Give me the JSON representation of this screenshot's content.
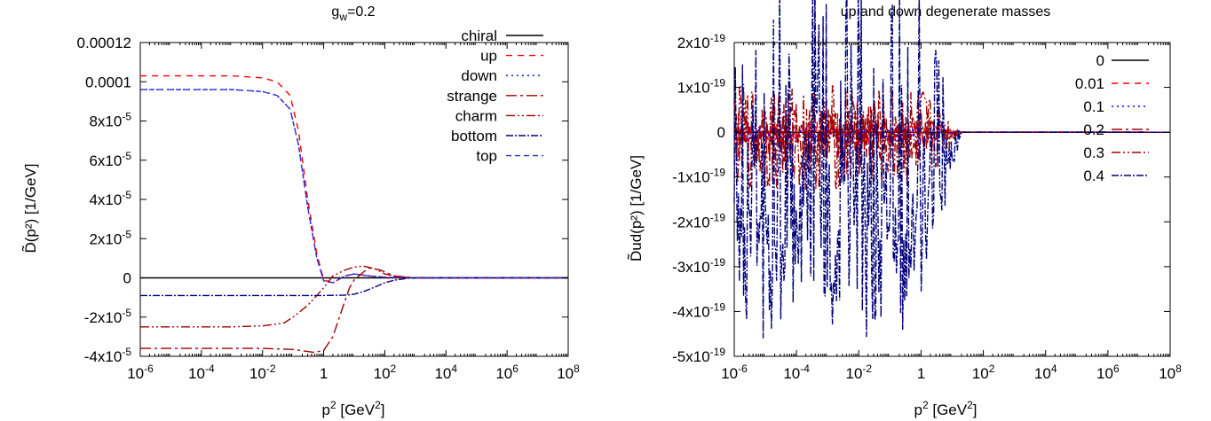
{
  "chart_data": [
    {
      "type": "line",
      "title": "g_w=0.2",
      "title_main": "g",
      "title_sub": "w",
      "title_rest": "=0.2",
      "xlabel_main": "p",
      "xlabel_sup": "2",
      "xlabel_rest": " [GeV",
      "xlabel_sup2": "2",
      "xlabel_end": "]",
      "ylabel": "D̃(p²) [1/GeV]",
      "x_scale": "log",
      "xlim": [
        1e-06,
        100000000.0
      ],
      "ylim": [
        -4e-05,
        0.00012
      ],
      "x_ticks": [
        {
          "base": "10",
          "exp": "-6",
          "value": 1e-06
        },
        {
          "base": "10",
          "exp": "-4",
          "value": 0.0001
        },
        {
          "base": "10",
          "exp": "-2",
          "value": 0.01
        },
        {
          "base": "1",
          "exp": "",
          "value": 1
        },
        {
          "base": "10",
          "exp": "2",
          "value": 100.0
        },
        {
          "base": "10",
          "exp": "4",
          "value": 10000.0
        },
        {
          "base": "10",
          "exp": "6",
          "value": 1000000.0
        },
        {
          "base": "10",
          "exp": "8",
          "value": 100000000.0
        }
      ],
      "y_ticks": [
        {
          "base": "0.00012",
          "exp": "",
          "value": 0.00012
        },
        {
          "base": "0.0001",
          "exp": "",
          "value": 0.0001
        },
        {
          "base": "8x10",
          "exp": "-5",
          "value": 8e-05
        },
        {
          "base": "6x10",
          "exp": "-5",
          "value": 6e-05
        },
        {
          "base": "4x10",
          "exp": "-5",
          "value": 4e-05
        },
        {
          "base": "2x10",
          "exp": "-5",
          "value": 2e-05
        },
        {
          "base": "0",
          "exp": "",
          "value": 0
        },
        {
          "base": "-2x10",
          "exp": "-5",
          "value": -2e-05
        },
        {
          "base": "-4x10",
          "exp": "-5",
          "value": -4e-05
        }
      ],
      "legend_position": "top-right",
      "series": [
        {
          "name": "chiral",
          "color": "#000000",
          "dash": "",
          "x": [
            1e-06,
            100000000.0
          ],
          "y": [
            0,
            0
          ]
        },
        {
          "name": "up",
          "color": "#ff0000",
          "dash": "7,6",
          "x": [
            1e-06,
            0.001,
            0.01,
            0.03,
            0.08,
            0.15,
            0.3,
            0.6,
            1,
            2,
            5,
            10,
            30,
            100,
            1000.0,
            100000000.0
          ],
          "y": [
            0.000103,
            0.000103,
            0.000102,
            0.0001,
            9.3e-05,
            7.5e-05,
            4e-05,
            1.2e-05,
            -1e-06,
            -2.5e-06,
            1e-06,
            2e-06,
            1e-06,
            3e-07,
            0,
            0
          ]
        },
        {
          "name": "down",
          "color": "#0000ff",
          "dash": "2,4",
          "x": [
            1e-06,
            0.001,
            0.01,
            0.03,
            0.08,
            0.15,
            0.3,
            0.6,
            1,
            2,
            5,
            10,
            30,
            100,
            1000.0,
            100000000.0
          ],
          "y": [
            9.6e-05,
            9.6e-05,
            9.5e-05,
            9.3e-05,
            8.6e-05,
            6.8e-05,
            3.6e-05,
            1e-05,
            -1.5e-06,
            -2.5e-06,
            1e-06,
            2e-06,
            1e-06,
            3e-07,
            0,
            0
          ]
        },
        {
          "name": "strange",
          "color": "#a00000",
          "dash": "12,4,3,4",
          "x": [
            1e-06,
            0.01,
            0.1,
            0.5,
            1,
            2,
            4,
            7,
            10,
            20,
            30,
            70,
            200,
            1000.0,
            100000000.0
          ],
          "y": [
            -3.6e-05,
            -3.6e-05,
            -3.65e-05,
            -3.8e-05,
            -3.7e-05,
            -3e-05,
            -1.6e-05,
            -5e-06,
            -1e-06,
            3e-06,
            5e-06,
            4e-06,
            1e-06,
            0,
            0
          ]
        },
        {
          "name": "charm",
          "color": "#a00000",
          "dash": "10,3,2,3,2,3",
          "x": [
            1e-06,
            0.001,
            0.01,
            0.05,
            0.1,
            0.3,
            0.6,
            1,
            2,
            5,
            10,
            20,
            50,
            100,
            300,
            1000.0,
            100000000.0
          ],
          "y": [
            -2.5e-05,
            -2.5e-05,
            -2.45e-05,
            -2.3e-05,
            -2e-05,
            -1.4e-05,
            -9e-06,
            -5e-06,
            1e-06,
            4e-06,
            5.5e-06,
            6e-06,
            4.5e-06,
            2e-06,
            5e-07,
            0,
            0
          ]
        },
        {
          "name": "bottom",
          "color": "#00007a",
          "dash": "8,2,2,2",
          "x": [
            1e-06,
            0.01,
            0.1,
            1,
            5,
            10,
            20,
            50,
            100,
            200,
            500,
            1000.0,
            10000.0,
            100000000.0
          ],
          "y": [
            -9e-06,
            -9e-06,
            -9e-06,
            -9e-06,
            -8.8e-06,
            -8.3e-06,
            -7e-06,
            -4.5e-06,
            -2.5e-06,
            -1.2e-06,
            -3e-07,
            0,
            0,
            0
          ]
        },
        {
          "name": "top",
          "color": "#3030d0",
          "dash": "6,4",
          "x": [
            1e-06,
            0.001,
            0.01,
            0.03,
            0.08,
            0.15,
            0.3,
            0.6,
            1,
            2,
            5,
            10,
            30,
            100,
            1000.0,
            100000000.0
          ],
          "y": [
            9.6e-05,
            9.6e-05,
            9.5e-05,
            9.3e-05,
            8.6e-05,
            6.8e-05,
            3.6e-05,
            1e-05,
            -1.5e-06,
            -2.5e-06,
            1e-06,
            2e-06,
            1e-06,
            3e-07,
            0,
            0
          ]
        }
      ]
    },
    {
      "type": "line",
      "title": "up and down degenerate masses",
      "xlabel_main": "p",
      "xlabel_sup": "2",
      "xlabel_rest": " [GeV",
      "xlabel_sup2": "2",
      "xlabel_end": "]",
      "ylabel": "D̃ud(p²) [1/GeV]",
      "x_scale": "log",
      "xlim": [
        1e-06,
        100000000.0
      ],
      "ylim": [
        -5e-19,
        2e-19
      ],
      "x_ticks": [
        {
          "base": "10",
          "exp": "-6",
          "value": 1e-06
        },
        {
          "base": "10",
          "exp": "-4",
          "value": 0.0001
        },
        {
          "base": "10",
          "exp": "-2",
          "value": 0.01
        },
        {
          "base": "1",
          "exp": "",
          "value": 1
        },
        {
          "base": "10",
          "exp": "2",
          "value": 100.0
        },
        {
          "base": "10",
          "exp": "4",
          "value": 10000.0
        },
        {
          "base": "10",
          "exp": "6",
          "value": 1000000.0
        },
        {
          "base": "10",
          "exp": "8",
          "value": 100000000.0
        }
      ],
      "y_ticks": [
        {
          "base": "2x10",
          "exp": "-19",
          "value": 2e-19
        },
        {
          "base": "1x10",
          "exp": "-19",
          "value": 1e-19
        },
        {
          "base": "0",
          "exp": "",
          "value": 0
        },
        {
          "base": "-1x10",
          "exp": "-19",
          "value": -1e-19
        },
        {
          "base": "-2x10",
          "exp": "-19",
          "value": -2e-19
        },
        {
          "base": "-3x10",
          "exp": "-19",
          "value": -3e-19
        },
        {
          "base": "-4x10",
          "exp": "-19",
          "value": -4e-19
        },
        {
          "base": "-5x10",
          "exp": "-19",
          "value": -5e-19
        }
      ],
      "legend_position": "top-right",
      "series": [
        {
          "name": "0",
          "color": "#000000",
          "dash": "",
          "noisy": false
        },
        {
          "name": "0.01",
          "color": "#ff0000",
          "dash": "7,6",
          "noisy": true,
          "amp": 3e-20
        },
        {
          "name": "0.1",
          "color": "#0000ff",
          "dash": "2,4",
          "noisy": true,
          "amp": 2e-20
        },
        {
          "name": "0.2",
          "color": "#a00000",
          "dash": "12,4,3,4",
          "noisy": true,
          "amp": 6e-20
        },
        {
          "name": "0.3",
          "color": "#a00000",
          "dash": "10,3,2,3,2,3",
          "noisy": true,
          "amp": 1.2e-19
        },
        {
          "name": "0.4",
          "color": "#00007a",
          "dash": "8,2,2,2",
          "noisy": true,
          "amp": 4.2e-19
        }
      ]
    }
  ]
}
